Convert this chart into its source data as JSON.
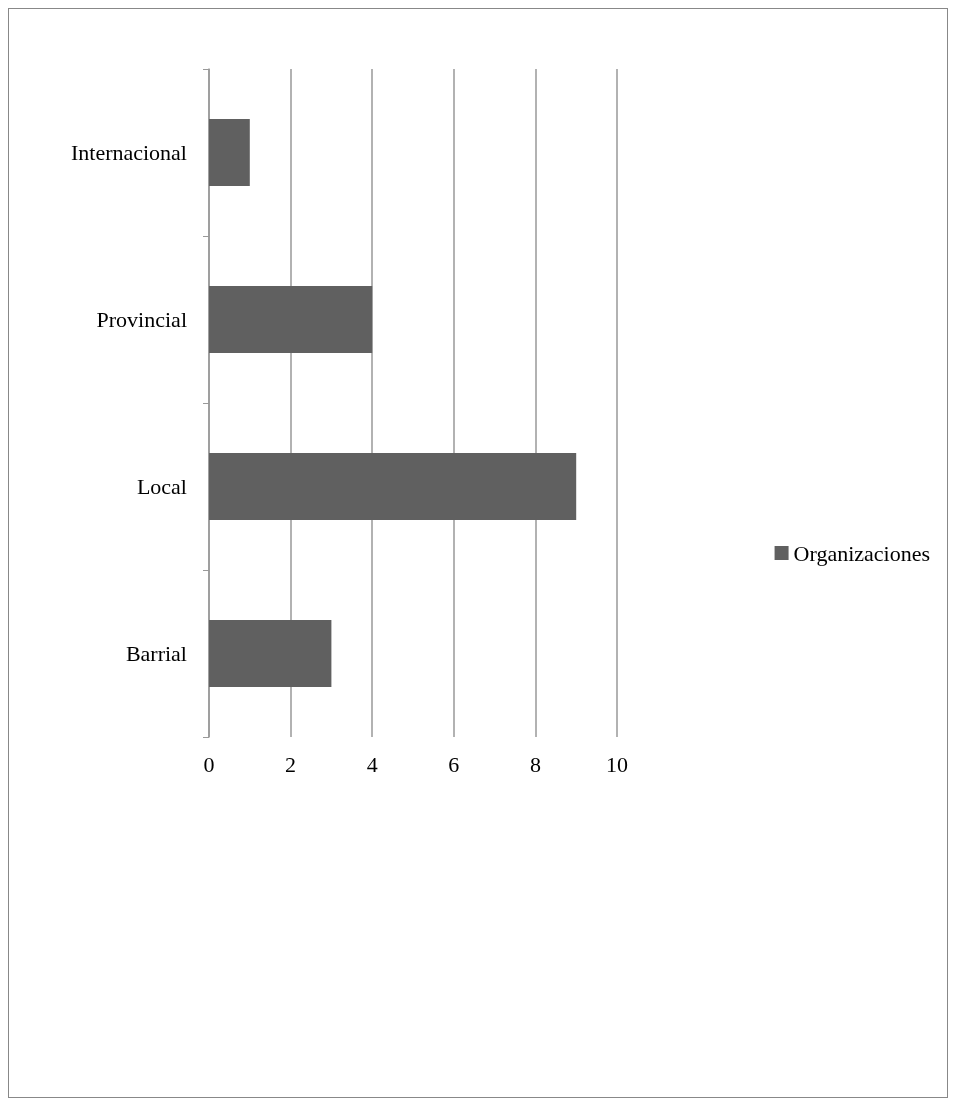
{
  "chart_data": {
    "type": "bar",
    "orientation": "horizontal",
    "categories": [
      "Internacional",
      "Provincial",
      "Local",
      "Barrial"
    ],
    "series": [
      {
        "name": "Organizaciones",
        "color": "#606060",
        "values": [
          1,
          4,
          9,
          3
        ]
      }
    ],
    "xlim": [
      0,
      10
    ],
    "xticks": [
      0,
      2,
      4,
      6,
      8,
      10
    ],
    "grid": "x",
    "legend": "right"
  }
}
